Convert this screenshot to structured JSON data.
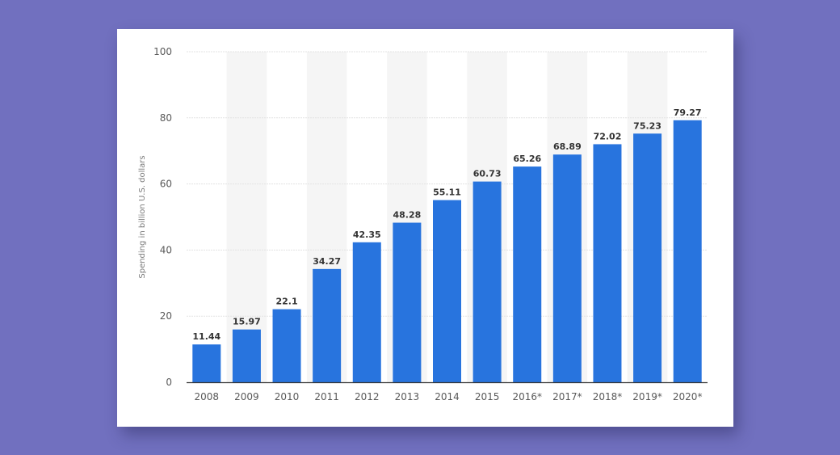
{
  "chart_data": {
    "type": "bar",
    "title": "",
    "xlabel": "",
    "ylabel": "Spending in billion U.S. dollars",
    "categories": [
      "2008",
      "2009",
      "2010",
      "2011",
      "2012",
      "2013",
      "2014",
      "2015",
      "2016*",
      "2017*",
      "2018*",
      "2019*",
      "2020*"
    ],
    "values": [
      11.44,
      15.97,
      22.1,
      34.27,
      42.35,
      48.28,
      55.11,
      60.73,
      65.26,
      68.89,
      72.02,
      75.23,
      79.27
    ],
    "value_labels": [
      "11.44",
      "15.97",
      "22.1",
      "34.27",
      "42.35",
      "48.28",
      "55.11",
      "60.73",
      "65.26",
      "68.89",
      "72.02",
      "75.23",
      "79.27"
    ],
    "ylim": [
      0,
      100
    ],
    "yticks": [
      "0",
      "20",
      "40",
      "60",
      "80",
      "100"
    ],
    "grid": true,
    "bar_color": "#2874de",
    "band_color": "#f5f5f5",
    "grid_color": "#e3e3e3"
  }
}
